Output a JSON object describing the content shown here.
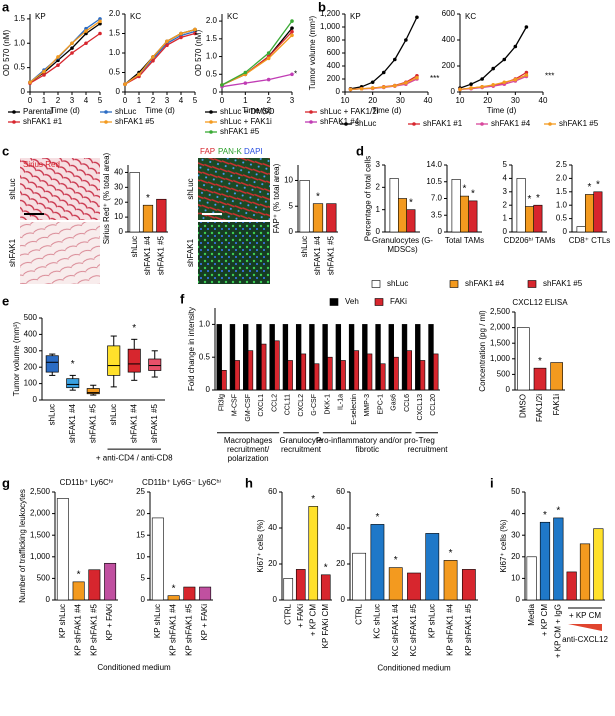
{
  "micrographs": {
    "left": {
      "stain": "Sirius Red",
      "rows": [
        "shLuc",
        "shFAK1"
      ]
    },
    "right": {
      "stains": [
        "FAP",
        "PAN-K",
        "DAPI"
      ],
      "rows": [
        "shLuc",
        "shFAK1"
      ]
    }
  },
  "chart_data": [
    {
      "type": "line",
      "panel": "a",
      "title": "KP",
      "xlabel": "Time (d)",
      "ylabel": "OD 570 (nM)",
      "x": [
        0,
        1,
        2,
        3,
        4,
        5
      ],
      "xlim": [
        0,
        5
      ],
      "xticks": [
        0,
        1,
        2,
        3,
        4,
        5
      ],
      "ylim": [
        0,
        1.6
      ],
      "yticks": [
        0,
        0.5,
        {
          "value": 1,
          "label": "1.0"
        },
        1.5
      ],
      "series": [
        {
          "name": "Parental",
          "color": "#000000",
          "values": [
            0.2,
            0.4,
            0.65,
            0.9,
            1.2,
            1.4
          ]
        },
        {
          "name": "shLuc",
          "color": "#2b6cc4",
          "values": [
            0.2,
            0.45,
            0.7,
            1.0,
            1.3,
            1.5
          ]
        },
        {
          "name": "shFAK1 #1",
          "color": "#d7262e",
          "values": [
            0.18,
            0.35,
            0.55,
            0.8,
            1.0,
            1.2
          ]
        },
        {
          "name": "shFAK1 #5",
          "color": "#f39a1f",
          "values": [
            0.2,
            0.42,
            0.72,
            1.0,
            1.25,
            1.45
          ]
        }
      ]
    },
    {
      "type": "line",
      "title": "KC",
      "xlabel": "Time (d)",
      "x": [
        0,
        1,
        2,
        3,
        4,
        5
      ],
      "xlim": [
        0,
        5
      ],
      "xticks": [
        0,
        1,
        2,
        3,
        4,
        5
      ],
      "ylim": [
        0,
        2
      ],
      "yticks": [
        0,
        0.5,
        {
          "value": 1,
          "label": "1.0"
        },
        1.5,
        {
          "value": 2,
          "label": "2.0"
        }
      ],
      "series": [
        {
          "color": "#000000",
          "values": [
            0.2,
            0.5,
            0.9,
            1.3,
            1.5,
            1.6
          ]
        },
        {
          "color": "#2b6cc4",
          "values": [
            0.2,
            0.45,
            0.85,
            1.25,
            1.45,
            1.55
          ]
        },
        {
          "color": "#d7262e",
          "values": [
            0.2,
            0.4,
            0.8,
            1.2,
            1.4,
            1.5
          ]
        },
        {
          "color": "#f39a1f",
          "values": [
            0.2,
            0.45,
            0.9,
            1.3,
            1.5,
            1.6
          ]
        }
      ]
    },
    {
      "type": "line",
      "title": "KC",
      "xlabel": "Time (d)",
      "ylabel": "OD 570 (nM)",
      "note": "*",
      "x": [
        0,
        1,
        2,
        3
      ],
      "xlim": [
        0,
        3
      ],
      "xticks": [
        0,
        1,
        2,
        3
      ],
      "ylim": [
        0,
        2.2
      ],
      "yticks": [
        0,
        0.5,
        {
          "value": 1,
          "label": "1.0"
        },
        1.5,
        {
          "value": 2,
          "label": "2.0"
        }
      ],
      "series": [
        {
          "name": "shLuc + DMSO",
          "color": "#000000",
          "values": [
            0.2,
            0.5,
            1.0,
            1.8
          ]
        },
        {
          "name": "shLuc + FAK1/2i",
          "color": "#d7262e",
          "values": [
            0.2,
            0.5,
            1.0,
            1.7
          ]
        },
        {
          "name": "shLuc + FAK1i",
          "color": "#f39a1f",
          "values": [
            0.2,
            0.5,
            0.95,
            1.6
          ]
        },
        {
          "name": "shFAK1 #4",
          "color": "#c03cb4",
          "values": [
            0.15,
            0.25,
            0.35,
            0.5
          ]
        },
        {
          "name": "shFAK1 #5",
          "color": "#3aaa35",
          "values": [
            0.2,
            0.55,
            1.1,
            2.0
          ]
        }
      ]
    },
    {
      "type": "line",
      "panel": "b",
      "title": "KP",
      "xlabel": "Time (d)",
      "ylabel": "Tumor volume (mm³)",
      "note": "***",
      "x": [
        12,
        16,
        20,
        24,
        28,
        32,
        36
      ],
      "xlim": [
        10,
        40
      ],
      "xticks": [
        10,
        20,
        30,
        40
      ],
      "ylim": [
        0,
        1200
      ],
      "yticks": [
        0,
        200,
        400,
        600,
        800,
        {
          "value": 1000,
          "label": "1,000"
        },
        {
          "value": 1200,
          "label": "1,200"
        }
      ],
      "series": [
        {
          "name": "shLuc",
          "color": "#000000",
          "values": [
            50,
            80,
            150,
            300,
            500,
            800,
            1150
          ]
        },
        {
          "name": "shFAK1 #1",
          "color": "#d7262e",
          "values": [
            40,
            50,
            60,
            80,
            100,
            150,
            250
          ]
        },
        {
          "name": "shFAK1 #4",
          "color": "#d8479c",
          "values": [
            40,
            50,
            55,
            70,
            90,
            120,
            200
          ]
        },
        {
          "name": "shFAK1 #5",
          "color": "#f39a1f",
          "values": [
            40,
            50,
            60,
            75,
            95,
            140,
            220
          ]
        }
      ]
    },
    {
      "type": "line",
      "title": "KC",
      "xlabel": "Time (d)",
      "note": "***",
      "x": [
        10,
        14,
        18,
        22,
        26,
        30,
        34
      ],
      "xlim": [
        10,
        40
      ],
      "xticks": [
        10,
        20,
        30,
        40
      ],
      "ylim": [
        0,
        600
      ],
      "yticks": [
        0,
        200,
        400,
        600
      ],
      "series": [
        {
          "color": "#000000",
          "values": [
            30,
            60,
            100,
            180,
            250,
            350,
            500
          ]
        },
        {
          "color": "#d7262e",
          "values": [
            20,
            30,
            40,
            50,
            70,
            100,
            150
          ]
        },
        {
          "color": "#d8479c",
          "values": [
            20,
            25,
            35,
            45,
            60,
            85,
            120
          ]
        },
        {
          "color": "#f39a1f",
          "values": [
            20,
            30,
            40,
            55,
            75,
            95,
            130
          ]
        }
      ]
    },
    {
      "type": "bar",
      "panel": "c",
      "ylabel": "Sirius Red⁺ (% total area)",
      "categories": [
        "shLuc",
        "shFAK1 #4",
        "shFAK1 #5"
      ],
      "ylim": [
        0,
        45
      ],
      "yticks": [
        0,
        10,
        20,
        30,
        40
      ],
      "series": [
        {
          "colors": [
            "#ffffff",
            "#f39a1f",
            "#d7262e"
          ],
          "values": [
            40,
            18,
            22
          ]
        }
      ],
      "stars": [
        null,
        "*",
        null
      ]
    },
    {
      "type": "bar",
      "ylabel": "FAP⁺ (% total area)",
      "categories": [
        "shLuc",
        "shFAK1 #4",
        "shFAK1 #5"
      ],
      "ylim": [
        0,
        13
      ],
      "yticks": [
        0,
        5,
        10
      ],
      "series": [
        {
          "colors": [
            "#ffffff",
            "#f39a1f",
            "#d7262e"
          ],
          "values": [
            10,
            5.5,
            5.5
          ]
        }
      ],
      "stars": [
        null,
        "*",
        null
      ]
    },
    {
      "type": "bar",
      "panel": "d",
      "ylabel": "Percentage of total cells",
      "categories": [
        "Granulocytes (G-MDSCs)"
      ],
      "ylim": [
        0,
        3
      ],
      "yticks": [
        0,
        1,
        2,
        3
      ],
      "series": [
        {
          "name": "shLuc",
          "color": "#ffffff",
          "values": [
            2.4
          ]
        },
        {
          "name": "shFAK1 #4",
          "color": "#f39a1f",
          "values": [
            1.5
          ]
        },
        {
          "name": "shFAK1 #5",
          "color": "#d7262e",
          "values": [
            1.0
          ]
        }
      ],
      "stars": [
        null,
        null,
        "*"
      ]
    },
    {
      "type": "bar",
      "categories": [
        "Total TAMs"
      ],
      "ylim": [
        0,
        14
      ],
      "yticks": [
        0,
        3.5,
        {
          "value": 7,
          "label": "7.0"
        },
        10.5,
        {
          "value": 14,
          "label": "14.0"
        }
      ],
      "series": [
        {
          "color": "#ffffff",
          "values": [
            11
          ]
        },
        {
          "color": "#f39a1f",
          "values": [
            7.5
          ]
        },
        {
          "color": "#d7262e",
          "values": [
            6.5
          ]
        }
      ],
      "stars": [
        null,
        "*",
        "*"
      ]
    },
    {
      "type": "bar",
      "categories": [
        "CD206ʰⁱ TAMs"
      ],
      "ylim": [
        0,
        5
      ],
      "yticks": [
        0,
        1,
        2,
        3,
        4,
        5
      ],
      "series": [
        {
          "color": "#ffffff",
          "values": [
            4
          ]
        },
        {
          "color": "#f39a1f",
          "values": [
            1.9
          ]
        },
        {
          "color": "#d7262e",
          "values": [
            2
          ]
        }
      ],
      "stars": [
        null,
        "*",
        "*"
      ]
    },
    {
      "type": "bar",
      "categories": [
        "CD8⁺ CTLs"
      ],
      "ylim": [
        0,
        2.5
      ],
      "yticks": [
        0,
        0.5,
        {
          "value": 1,
          "label": "1.0"
        },
        1.5,
        {
          "value": 2,
          "label": "2.0"
        },
        2.5
      ],
      "series": [
        {
          "color": "#ffffff",
          "values": [
            0.2
          ]
        },
        {
          "color": "#f39a1f",
          "values": [
            1.4
          ]
        },
        {
          "color": "#d7262e",
          "values": [
            1.5
          ]
        }
      ],
      "stars": [
        null,
        "*",
        "*"
      ]
    },
    {
      "type": "box",
      "panel": "e",
      "ylabel": "Tumor volume (mm³)",
      "note": "+ anti-CD4 / anti-CD8",
      "categories": [
        "shLuc",
        "shFAK1 #4",
        "shFAK1 #5",
        "shLuc",
        "shFAK1 #4",
        "shFAK1 #5"
      ],
      "colors": [
        "#2b6cc4",
        "#3aa0e0",
        "#f39a1f",
        "#ffe12b",
        "#d7262e",
        "#e8506a"
      ],
      "ylim": [
        0,
        500
      ],
      "yticks": [
        0,
        100,
        200,
        300,
        400,
        500
      ],
      "boxes": [
        [
          150,
          170,
          230,
          270,
          280
        ],
        [
          60,
          75,
          95,
          130,
          150
        ],
        [
          30,
          38,
          45,
          70,
          90
        ],
        [
          80,
          150,
          210,
          330,
          390
        ],
        [
          120,
          170,
          220,
          310,
          370
        ],
        [
          140,
          180,
          210,
          250,
          300
        ]
      ],
      "stars": [
        null,
        "*",
        null,
        null,
        "*",
        null
      ]
    },
    {
      "type": "bar",
      "panel": "f",
      "ylabel": "Fold change in intensity",
      "groups": [
        {
          "name": "Macrophages recruitment/ polarization",
          "categories": [
            "Flt3lg",
            "M-CSF",
            "GM-CSF",
            "CXCL1",
            "CCL2"
          ]
        },
        {
          "name": "Granulocyte recruitment",
          "categories": [
            "CCL11",
            "CXCL2",
            "G-CSF"
          ]
        },
        {
          "name": "Pro-inflammatory and/or pro-fibrotic",
          "categories": [
            "DKK-1",
            "IL-1a",
            "E-selectin",
            "MMP-3",
            "EPC-1",
            "Gas6",
            "CCL6"
          ]
        },
        {
          "name": "Treg recruitment",
          "categories": [
            "CXCL13",
            "CCL20"
          ]
        }
      ],
      "ylim": [
        0,
        1.25
      ],
      "yticks": [
        0,
        0.5,
        {
          "value": 1,
          "label": "1.0"
        }
      ],
      "series": [
        {
          "name": "Veh",
          "color": "#000000",
          "values": [
            1,
            1,
            1,
            1,
            1,
            1,
            1,
            1,
            1,
            1,
            1,
            1,
            1,
            1,
            1,
            1,
            1
          ]
        },
        {
          "name": "FAKi",
          "color": "#d7262e",
          "values": [
            0.3,
            0.45,
            0.6,
            0.7,
            0.75,
            0.45,
            0.55,
            0.4,
            0.5,
            0.45,
            0.6,
            0.55,
            0.4,
            0.5,
            0.6,
            0.45,
            0.55
          ]
        }
      ]
    },
    {
      "type": "bar",
      "title": "CXCL12 ELISA",
      "ylabel": "Concentration (pg / ml)",
      "categories": [
        "DMSO",
        "FAK1/2i",
        "FAK1i"
      ],
      "ylim": [
        0,
        2500
      ],
      "yticks": [
        0,
        500,
        {
          "value": 1000,
          "label": "1,000"
        },
        {
          "value": 1500,
          "label": "1,500"
        },
        {
          "value": 2000,
          "label": "2,000"
        },
        {
          "value": 2500,
          "label": "2,500"
        }
      ],
      "series": [
        {
          "colors": [
            "#ffffff",
            "#d7262e",
            "#f39a1f"
          ],
          "values": [
            2000,
            700,
            880
          ]
        }
      ],
      "stars": [
        null,
        "*",
        null
      ]
    },
    {
      "type": "bar",
      "panel": "g",
      "title": "CD11b⁺ Ly6Cʰⁱ",
      "ylabel": "Number of trafficking leukocytes",
      "categories": [
        "KP shLuc",
        "KP shFAK1 #4",
        "KP shFAK1 #5",
        "KP + FAKi"
      ],
      "ylim": [
        0,
        2500
      ],
      "yticks": [
        0,
        500,
        {
          "value": 1000,
          "label": "1,000"
        },
        {
          "value": 1500,
          "label": "1,500"
        },
        {
          "value": 2000,
          "label": "2,000"
        },
        {
          "value": 2500,
          "label": "2,500"
        }
      ],
      "series": [
        {
          "colors": [
            "#ffffff",
            "#f39a1f",
            "#d7262e",
            "#c050a0"
          ],
          "values": [
            2350,
            420,
            700,
            850
          ]
        }
      ],
      "stars": [
        null,
        "*",
        null,
        null
      ]
    },
    {
      "type": "bar",
      "title": "CD11b⁺ Ly6G⁻ Ly6Cʰⁱ",
      "xlabel": "Conditioned medium",
      "categories": [
        "KP shLuc",
        "KP shFAK1 #4",
        "KP shFAK1 #5",
        "KP + FAKi"
      ],
      "ylim": [
        0,
        25
      ],
      "yticks": [
        0,
        5,
        10,
        15,
        20,
        25
      ],
      "series": [
        {
          "colors": [
            "#ffffff",
            "#f39a1f",
            "#d7262e",
            "#c050a0"
          ],
          "values": [
            19,
            1,
            3,
            3
          ]
        }
      ],
      "stars": [
        null,
        "*",
        null,
        null
      ]
    },
    {
      "type": "bar",
      "panel": "h",
      "ylabel": "Ki67⁺ cells (%)",
      "categories": [
        "CTRL",
        "+ FAKi",
        "+ KP CM",
        "KP FAKi CM"
      ],
      "ylim": [
        0,
        60
      ],
      "yticks": [
        0,
        20,
        40,
        60
      ],
      "series": [
        {
          "colors": [
            "#ffffff",
            "#d7262e",
            "#ffe12b",
            "#d7262e"
          ],
          "values": [
            12,
            17,
            52,
            14
          ]
        }
      ],
      "stars": [
        null,
        null,
        "*",
        "*"
      ]
    },
    {
      "type": "bar",
      "xlabel": "Conditioned medium",
      "categories": [
        "CTRL",
        "KC shLuc",
        "KC shFAK1 #4",
        "KC shFAK1 #5",
        "KP shLuc",
        "KP shFAK1 #4",
        "KP shFAK1 #5"
      ],
      "ylim": [
        0,
        60
      ],
      "yticks": [
        0,
        20,
        40,
        60
      ],
      "series": [
        {
          "colors": [
            "#ffffff",
            "#1f78c8",
            "#f39a1f",
            "#d7262e",
            "#1f78c8",
            "#f39a1f",
            "#d7262e"
          ],
          "values": [
            26,
            42,
            18,
            15,
            37,
            22,
            17
          ]
        }
      ],
      "stars": [
        null,
        "*",
        "*",
        null,
        null,
        "*",
        null
      ]
    },
    {
      "type": "bar",
      "panel": "i",
      "ylabel": "Ki67⁺ cells (%)",
      "notes": [
        "+ KP CM",
        "anti-CXCL12"
      ],
      "categories": [
        "Media",
        "+ KP CM",
        "+ KP CM + IgG",
        null,
        null,
        null
      ],
      "ylim": [
        0,
        50
      ],
      "yticks": [
        0,
        10,
        20,
        30,
        40,
        50
      ],
      "series": [
        {
          "colors": [
            "#ffffff",
            "#1f78c8",
            "#1f78c8",
            "#d7262e",
            "#f39a1f",
            "#ffe12b"
          ],
          "values": [
            20,
            36,
            38,
            13,
            26,
            33
          ]
        }
      ],
      "stars": [
        null,
        "*",
        "*",
        null,
        null,
        null
      ]
    }
  ]
}
